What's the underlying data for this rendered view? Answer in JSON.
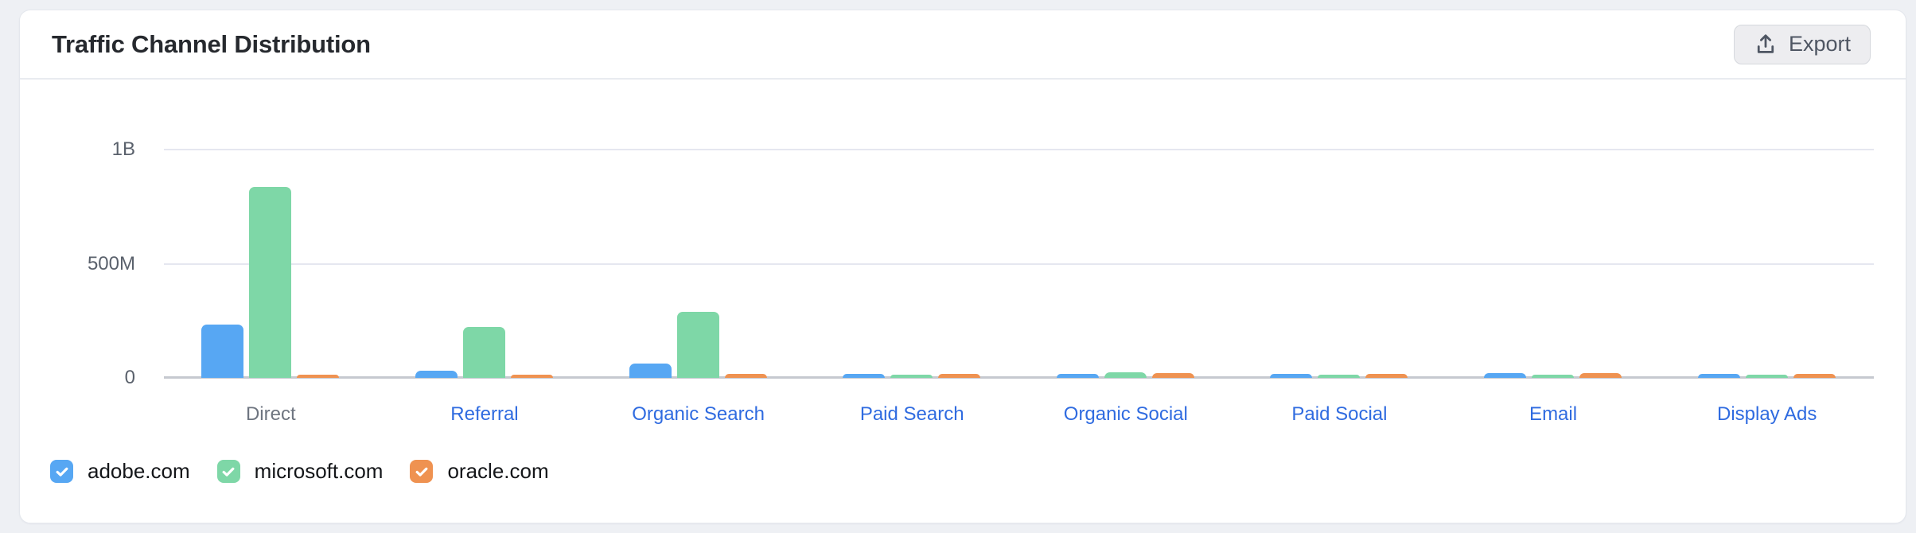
{
  "page": {
    "background_color": "#eef0f4"
  },
  "header": {
    "title": "Traffic Channel Distribution",
    "export_button": {
      "label": "Export",
      "icon": "upload-icon"
    }
  },
  "chart_data": {
    "type": "bar",
    "title": "Traffic Channel Distribution",
    "unit": "visits",
    "categories": [
      "Direct",
      "Referral",
      "Organic Search",
      "Paid Search",
      "Organic Social",
      "Paid Social",
      "Email",
      "Display Ads"
    ],
    "series": [
      {
        "name": "adobe.com",
        "color": "#57a7f3",
        "values_millions": [
          235,
          32,
          62,
          16,
          17,
          16,
          20,
          16
        ]
      },
      {
        "name": "microsoft.com",
        "color": "#7ed7a7",
        "values_millions": [
          835,
          222,
          290,
          15,
          23,
          14,
          15,
          13
        ]
      },
      {
        "name": "oracle.com",
        "color": "#ef9251",
        "values_millions": [
          15,
          15,
          18,
          18,
          20,
          16,
          20,
          18
        ]
      }
    ],
    "y_axis": {
      "ticks": [
        {
          "label": "0",
          "value_millions": 0
        },
        {
          "label": "500M",
          "value_millions": 500
        },
        {
          "label": "1B",
          "value_millions": 1000
        }
      ],
      "max_millions": 1000,
      "grid": true
    },
    "x_axis": {
      "active_category": "Direct",
      "active_color": "#6e7580",
      "link_color": "#2f6be0"
    },
    "legend_position": "bottom-left"
  },
  "legend": {
    "items": [
      {
        "label": "adobe.com",
        "color": "#57a7f3",
        "checked": true
      },
      {
        "label": "microsoft.com",
        "color": "#7ed7a7",
        "checked": true
      },
      {
        "label": "oracle.com",
        "color": "#ef9251",
        "checked": true
      }
    ]
  }
}
